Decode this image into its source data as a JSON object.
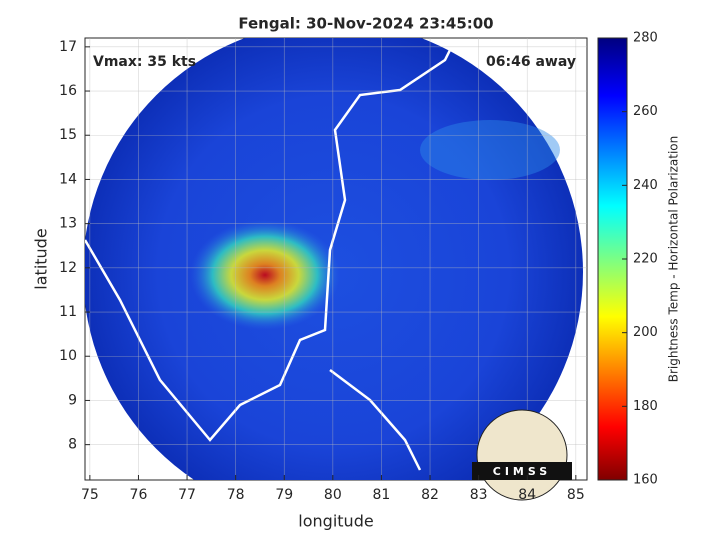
{
  "chart_data": {
    "type": "map",
    "title": "Fengal: 30-Nov-2024 23:45:00",
    "annotations": [
      "Vmax: 35 kts",
      "06:46 away"
    ],
    "x_label": "longitude",
    "y_label": "latitude",
    "xlim": [
      74.9,
      85.23
    ],
    "xticks": [
      75,
      76,
      77,
      78,
      79,
      80,
      81,
      82,
      83,
      84,
      85
    ],
    "ylim": [
      7.2,
      17.2
    ],
    "yticks": [
      8,
      9,
      10,
      11,
      12,
      13,
      14,
      15,
      16,
      17
    ],
    "grid": true,
    "colorbar": {
      "label": "Brightness Temp - Horizontal Polarization",
      "lim": [
        160,
        280
      ],
      "ticks": [
        160,
        180,
        200,
        220,
        240,
        260,
        280
      ]
    },
    "logo": "CIMSS"
  }
}
